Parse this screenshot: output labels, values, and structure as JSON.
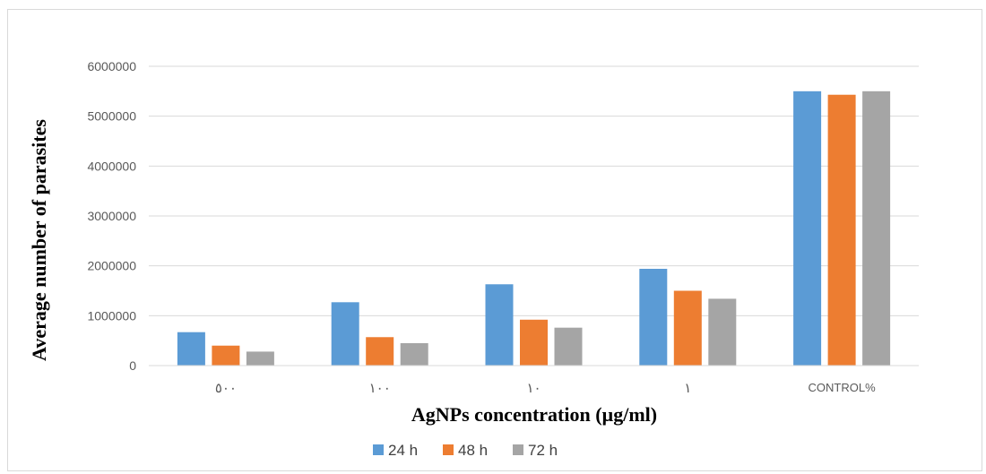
{
  "chart_data": {
    "type": "bar",
    "title": "",
    "xlabel": "AgNPs concentration (µg/ml)",
    "ylabel": "Average number of parasites",
    "categories": [
      "٥٠٠",
      "١٠٠",
      "١٠",
      "١",
      "CONTROL%"
    ],
    "series": [
      {
        "name": "24 h",
        "color": "#5b9bd5",
        "values": [
          670000,
          1270000,
          1630000,
          1940000,
          5500000
        ]
      },
      {
        "name": "48 h",
        "color": "#ed7d31",
        "values": [
          400000,
          570000,
          920000,
          1500000,
          5430000
        ]
      },
      {
        "name": "72 h",
        "color": "#a5a5a5",
        "values": [
          280000,
          450000,
          760000,
          1340000,
          5500000
        ]
      }
    ],
    "ylim": [
      0,
      6000000
    ],
    "yticks": [
      "0",
      "1000000",
      "2000000",
      "3000000",
      "4000000",
      "5000000",
      "6000000"
    ],
    "grid": true,
    "legend_position": "bottom"
  }
}
